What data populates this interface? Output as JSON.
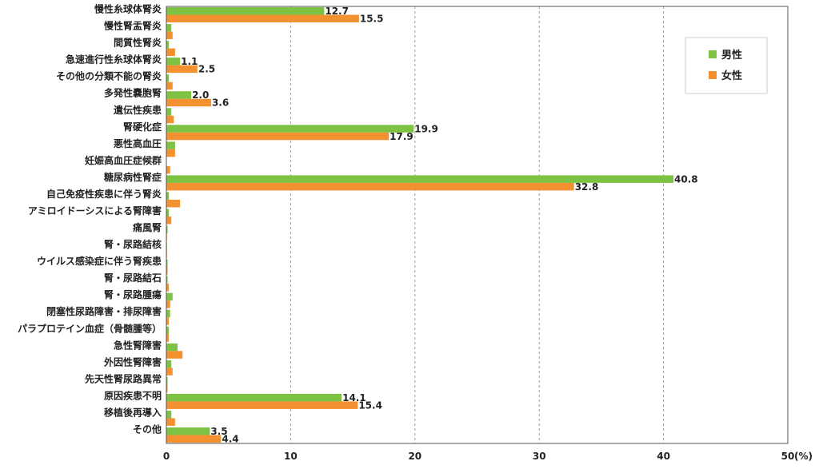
{
  "chart_data": {
    "type": "bar",
    "orientation": "horizontal",
    "categories": [
      "慢性糸球体腎炎",
      "慢性腎盂腎炎",
      "間質性腎炎",
      "急速進行性糸球体腎炎",
      "その他の分類不能の腎炎",
      "多発性嚢胞腎",
      "遺伝性疾患",
      "腎硬化症",
      "悪性高血圧",
      "妊娠高血圧症候群",
      "糖尿病性腎症",
      "自己免疫性疾患に伴う腎炎",
      "アミロイドーシスによる腎障害",
      "痛風腎",
      "腎・尿路結核",
      "ウイルス感染症に伴う腎疾患",
      "腎・尿路結石",
      "腎・尿路腫瘍",
      "閉塞性尿路障害・排尿障害",
      "パラプロテイン血症（骨髄腫等）",
      "急性腎障害",
      "外因性腎障害",
      "先天性腎尿路異常",
      "原因疾患不明",
      "移植後再導入",
      "その他"
    ],
    "series": [
      {
        "name": "男性",
        "color": "#7dc242",
        "values": [
          12.7,
          0.4,
          0.2,
          1.1,
          0.2,
          2.0,
          0.4,
          19.9,
          0.7,
          0.0,
          40.8,
          0.2,
          0.2,
          0.1,
          0.05,
          0.1,
          0.1,
          0.5,
          0.3,
          0.2,
          0.9,
          0.4,
          0.1,
          14.1,
          0.4,
          3.5
        ]
      },
      {
        "name": "女性",
        "color": "#f39131",
        "values": [
          15.5,
          0.5,
          0.7,
          2.5,
          0.5,
          3.6,
          0.6,
          17.9,
          0.7,
          0.3,
          32.8,
          1.1,
          0.4,
          0.05,
          0.05,
          0.1,
          0.2,
          0.3,
          0.2,
          0.2,
          1.3,
          0.5,
          0.1,
          15.4,
          0.7,
          4.4
        ]
      }
    ],
    "data_labels": [
      {
        "series": 0,
        "index": 0,
        "text": "12.7"
      },
      {
        "series": 1,
        "index": 0,
        "text": "15.5"
      },
      {
        "series": 0,
        "index": 3,
        "text": "1.1"
      },
      {
        "series": 1,
        "index": 3,
        "text": "2.5"
      },
      {
        "series": 0,
        "index": 5,
        "text": "2.0"
      },
      {
        "series": 1,
        "index": 5,
        "text": "3.6"
      },
      {
        "series": 0,
        "index": 7,
        "text": "19.9"
      },
      {
        "series": 1,
        "index": 7,
        "text": "17.9"
      },
      {
        "series": 0,
        "index": 10,
        "text": "40.8"
      },
      {
        "series": 1,
        "index": 10,
        "text": "32.8"
      },
      {
        "series": 0,
        "index": 23,
        "text": "14.1"
      },
      {
        "series": 1,
        "index": 23,
        "text": "15.4"
      },
      {
        "series": 0,
        "index": 25,
        "text": "3.5"
      },
      {
        "series": 1,
        "index": 25,
        "text": "4.4"
      }
    ],
    "xlim": [
      0,
      50
    ],
    "xticks": [
      0,
      10,
      20,
      30,
      40,
      50
    ],
    "xtick_labels": [
      "0",
      "10",
      "20",
      "30",
      "40",
      "50"
    ],
    "xunit": "(%)",
    "grid": "vertical-dashed",
    "legend": "top-right"
  }
}
